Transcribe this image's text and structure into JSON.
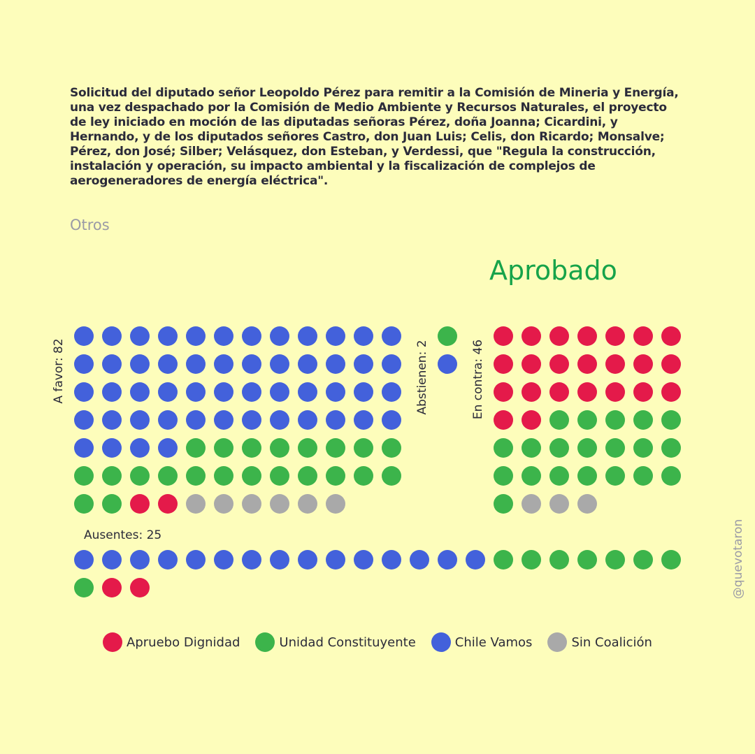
{
  "description": "Solicitud del diputado señor Leopoldo Pérez para remitir a la Comisión de Mineria y Energía, una vez despachado por la Comisión de Medio Ambiente y Recursos Naturales, el proyecto de ley iniciado en moción de las diputadas señoras Pérez, doña Joanna; Cicardini, y Hernando, y de los diputados señores Castro, don Juan Luis; Celis, don Ricardo; Monsalve; Pérez, don José; Silber; Velásquez, don Esteban, y Verdessi, que \"Regula la construcción, instalación y operación, su impacto ambiental y la fiscalización de complejos de aerogeneradores de energía eléctrica\".",
  "category": "Otros",
  "result": "Aprobado",
  "watermark": "@quevotaron",
  "colors": {
    "background": "#fdfdbb",
    "result": "#16a34a",
    "Apruebo Dignidad": "#e41a4a",
    "Unidad Constituyente": "#3cb44b",
    "Chile Vamos": "#4361db",
    "Sin Coalición": "#a9a9a9"
  },
  "chart_data": {
    "type": "dot-matrix",
    "legend": [
      "Apruebo Dignidad",
      "Unidad Constituyente",
      "Chile Vamos",
      "Sin Coalición"
    ],
    "groups": [
      {
        "key": "favor",
        "label": "A favor: 82",
        "total": 82,
        "counts": {
          "Chile Vamos": 52,
          "Unidad Constituyente": 22,
          "Apruebo Dignidad": 2,
          "Sin Coalición": 6
        }
      },
      {
        "key": "abstienen",
        "label": "Abstienen: 2",
        "total": 2,
        "counts": {
          "Unidad Constituyente": 1,
          "Chile Vamos": 1
        }
      },
      {
        "key": "contra",
        "label": "En contra: 46",
        "total": 46,
        "counts": {
          "Apruebo Dignidad": 23,
          "Unidad Constituyente": 20,
          "Sin Coalición": 3
        }
      },
      {
        "key": "ausentes",
        "label": "Ausentes: 25",
        "total": 25,
        "counts": {
          "Chile Vamos": 15,
          "Unidad Constituyente": 8,
          "Apruebo Dignidad": 2
        }
      }
    ]
  }
}
